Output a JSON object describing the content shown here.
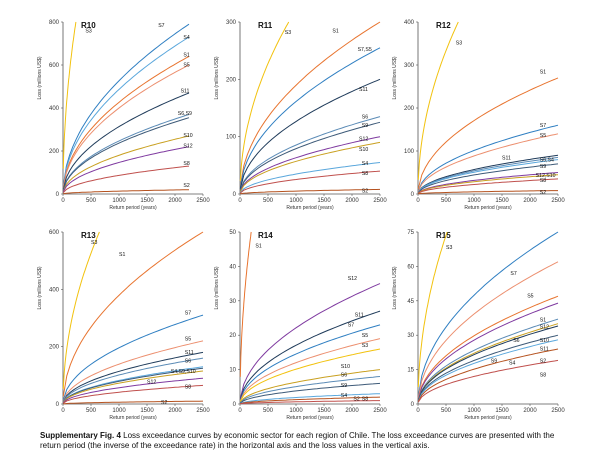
{
  "figure": {
    "caption_label": "Supplementary Fig. 4",
    "caption_text": " Loss exceedance curves by economic sector for each region of Chile. The loss exceedance curves are presented with the return period (the inverse of the exceedance rate) in the horizontal axis and the loss values in the vertical axis."
  },
  "colors": {
    "S1": "#e8742f",
    "S2": "#b5521f",
    "S3": "#f2c20e",
    "S4": "#5aa7dc",
    "S5": "#ec8f6f",
    "S6": "#5b8bb6",
    "S7": "#2f7fc2",
    "S8": "#c0504d",
    "S9": "#3d5a78",
    "S10": "#c9a020",
    "S11": "#1f3b5a",
    "S12": "#7f3aa0"
  },
  "chart_data": [
    {
      "type": "line",
      "title": "R10",
      "ylabel": "Loss (millions US$)",
      "xlabel": "Return period (years)",
      "xlim": [
        0,
        2500
      ],
      "ylim": [
        0,
        800
      ],
      "yticks": [
        0,
        200,
        400,
        600,
        800
      ],
      "xticks": [
        0,
        500,
        1000,
        1500,
        2000,
        2500
      ],
      "series": [
        {
          "name": "S3",
          "end": [
            230,
            800
          ]
        },
        {
          "name": "S7",
          "end": [
            2250,
            790
          ]
        },
        {
          "name": "S4",
          "end": [
            2250,
            730
          ]
        },
        {
          "name": "S1",
          "end": [
            2250,
            640
          ]
        },
        {
          "name": "S5",
          "end": [
            2250,
            600
          ]
        },
        {
          "name": "S11",
          "end": [
            2250,
            470
          ]
        },
        {
          "name": "S6",
          "end": [
            2250,
            370
          ]
        },
        {
          "name": "S9",
          "end": [
            2250,
            355
          ]
        },
        {
          "name": "S10",
          "end": [
            2250,
            270
          ]
        },
        {
          "name": "S12",
          "end": [
            2250,
            220
          ]
        },
        {
          "name": "S8",
          "end": [
            2250,
            130
          ]
        },
        {
          "name": "S2",
          "end": [
            2250,
            20
          ]
        }
      ],
      "labels": [
        {
          "t": "S3",
          "x": 0.16,
          "y": 0.94
        },
        {
          "t": "S7",
          "x": 0.68,
          "y": 0.97
        },
        {
          "t": "S4",
          "x": 0.86,
          "y": 0.9
        },
        {
          "t": "S1",
          "x": 0.86,
          "y": 0.8
        },
        {
          "t": "S5",
          "x": 0.86,
          "y": 0.74
        },
        {
          "t": "S11",
          "x": 0.84,
          "y": 0.59
        },
        {
          "t": "S6,S9",
          "x": 0.82,
          "y": 0.46
        },
        {
          "t": "S10",
          "x": 0.86,
          "y": 0.33
        },
        {
          "t": "S12",
          "x": 0.86,
          "y": 0.27
        },
        {
          "t": "S8",
          "x": 0.86,
          "y": 0.17
        },
        {
          "t": "S2",
          "x": 0.86,
          "y": 0.04
        }
      ]
    },
    {
      "type": "line",
      "title": "R11",
      "ylabel": "Loss (millions US$)",
      "xlabel": "Return period (years)",
      "xlim": [
        0,
        2500
      ],
      "ylim": [
        0,
        300
      ],
      "yticks": [
        0,
        100,
        200,
        300
      ],
      "xticks": [
        0,
        500,
        1000,
        1500,
        2000,
        2500
      ],
      "series": [
        {
          "name": "S3",
          "end": [
            870,
            300
          ]
        },
        {
          "name": "S1",
          "end": [
            2500,
            300
          ]
        },
        {
          "name": "S7,S5",
          "end": [
            2500,
            255
          ]
        },
        {
          "name": "S11",
          "end": [
            2500,
            200
          ]
        },
        {
          "name": "S6",
          "end": [
            2500,
            135
          ]
        },
        {
          "name": "S9",
          "end": [
            2500,
            125
          ]
        },
        {
          "name": "S12",
          "end": [
            2500,
            100
          ]
        },
        {
          "name": "S10",
          "end": [
            2500,
            90
          ]
        },
        {
          "name": "S4",
          "end": [
            2500,
            55
          ]
        },
        {
          "name": "S8",
          "end": [
            2500,
            40
          ]
        },
        {
          "name": "S2",
          "end": [
            2500,
            8
          ]
        }
      ],
      "labels": [
        {
          "t": "S3",
          "x": 0.32,
          "y": 0.93
        },
        {
          "t": "S1",
          "x": 0.66,
          "y": 0.94
        },
        {
          "t": "S7,S5",
          "x": 0.84,
          "y": 0.83
        },
        {
          "t": "S11",
          "x": 0.85,
          "y": 0.6
        },
        {
          "t": "S6",
          "x": 0.87,
          "y": 0.44
        },
        {
          "t": "S9",
          "x": 0.87,
          "y": 0.39
        },
        {
          "t": "S12",
          "x": 0.85,
          "y": 0.31
        },
        {
          "t": "S10",
          "x": 0.85,
          "y": 0.25
        },
        {
          "t": "S4",
          "x": 0.87,
          "y": 0.17
        },
        {
          "t": "S8",
          "x": 0.87,
          "y": 0.11
        },
        {
          "t": "S2",
          "x": 0.87,
          "y": 0.01
        }
      ]
    },
    {
      "type": "line",
      "title": "R12",
      "ylabel": "Loss (millions US$)",
      "xlabel": "Return period (years)",
      "xlim": [
        0,
        2500
      ],
      "ylim": [
        0,
        400
      ],
      "yticks": [
        0,
        100,
        200,
        300,
        400
      ],
      "xticks": [
        0,
        500,
        1000,
        1500,
        2000,
        2500
      ],
      "series": [
        {
          "name": "S3",
          "end": [
            720,
            400
          ]
        },
        {
          "name": "S1",
          "end": [
            2500,
            270
          ]
        },
        {
          "name": "S7",
          "end": [
            2500,
            160
          ]
        },
        {
          "name": "S5",
          "end": [
            2500,
            140
          ]
        },
        {
          "name": "S11",
          "end": [
            2500,
            90
          ]
        },
        {
          "name": "S6",
          "end": [
            2500,
            85
          ]
        },
        {
          "name": "S4",
          "end": [
            2500,
            80
          ]
        },
        {
          "name": "S9",
          "end": [
            2500,
            70
          ]
        },
        {
          "name": "S12",
          "end": [
            2500,
            50
          ]
        },
        {
          "name": "S10",
          "end": [
            2500,
            45
          ]
        },
        {
          "name": "S8",
          "end": [
            2500,
            35
          ]
        },
        {
          "name": "S2",
          "end": [
            2500,
            8
          ]
        }
      ],
      "labels": [
        {
          "t": "S3",
          "x": 0.27,
          "y": 0.87
        },
        {
          "t": "S1",
          "x": 0.87,
          "y": 0.7
        },
        {
          "t": "S7",
          "x": 0.87,
          "y": 0.39
        },
        {
          "t": "S5",
          "x": 0.87,
          "y": 0.33
        },
        {
          "t": "S11",
          "x": 0.6,
          "y": 0.2
        },
        {
          "t": "S6,S4",
          "x": 0.87,
          "y": 0.19
        },
        {
          "t": "S9",
          "x": 0.87,
          "y": 0.15
        },
        {
          "t": "S12,S10",
          "x": 0.84,
          "y": 0.1
        },
        {
          "t": "S8",
          "x": 0.87,
          "y": 0.07
        },
        {
          "t": "S2",
          "x": 0.87,
          "y": 0.0
        }
      ]
    },
    {
      "type": "line",
      "title": "R13",
      "ylabel": "Loss (millions US$)",
      "xlabel": "Return period (years)",
      "xlim": [
        0,
        2500
      ],
      "ylim": [
        0,
        600
      ],
      "yticks": [
        0,
        200,
        400,
        600
      ],
      "xticks": [
        0,
        500,
        1000,
        1500,
        2000,
        2500
      ],
      "series": [
        {
          "name": "S3",
          "end": [
            650,
            600
          ]
        },
        {
          "name": "S1",
          "end": [
            2500,
            600
          ]
        },
        {
          "name": "S7",
          "end": [
            2500,
            310
          ]
        },
        {
          "name": "S5",
          "end": [
            2500,
            220
          ]
        },
        {
          "name": "S11",
          "end": [
            2500,
            180
          ]
        },
        {
          "name": "S6",
          "end": [
            2500,
            160
          ]
        },
        {
          "name": "S4",
          "end": [
            2500,
            130
          ]
        },
        {
          "name": "S9",
          "end": [
            2500,
            125
          ]
        },
        {
          "name": "S10",
          "end": [
            2500,
            115
          ]
        },
        {
          "name": "S12",
          "end": [
            2500,
            90
          ]
        },
        {
          "name": "S8",
          "end": [
            2500,
            65
          ]
        },
        {
          "name": "S2",
          "end": [
            2500,
            10
          ]
        }
      ],
      "labels": [
        {
          "t": "S3",
          "x": 0.2,
          "y": 0.93
        },
        {
          "t": "S1",
          "x": 0.4,
          "y": 0.86
        },
        {
          "t": "S7",
          "x": 0.87,
          "y": 0.52
        },
        {
          "t": "S5",
          "x": 0.87,
          "y": 0.37
        },
        {
          "t": "S11",
          "x": 0.87,
          "y": 0.29
        },
        {
          "t": "S6",
          "x": 0.87,
          "y": 0.24
        },
        {
          "t": "S4,S9,S10",
          "x": 0.77,
          "y": 0.18
        },
        {
          "t": "S12",
          "x": 0.6,
          "y": 0.12
        },
        {
          "t": "S8",
          "x": 0.87,
          "y": 0.09
        },
        {
          "t": "S2",
          "x": 0.7,
          "y": 0.0
        }
      ]
    },
    {
      "type": "line",
      "title": "R14",
      "ylabel": "Loss (millions US$)",
      "xlabel": "Return period (years)",
      "xlim": [
        0,
        2500
      ],
      "ylim": [
        0,
        50
      ],
      "yticks": [
        0,
        10,
        20,
        30,
        40,
        50
      ],
      "xticks": [
        0,
        500,
        1000,
        1500,
        2000,
        2500
      ],
      "series": [
        {
          "name": "S1",
          "end": [
            200,
            50
          ]
        },
        {
          "name": "S12",
          "end": [
            2500,
            35
          ]
        },
        {
          "name": "S11",
          "end": [
            2500,
            27
          ]
        },
        {
          "name": "S7",
          "end": [
            2500,
            23
          ]
        },
        {
          "name": "S5",
          "end": [
            2500,
            19
          ]
        },
        {
          "name": "S3",
          "end": [
            2500,
            16
          ]
        },
        {
          "name": "S10",
          "end": [
            2500,
            10
          ]
        },
        {
          "name": "S6",
          "end": [
            2500,
            8
          ]
        },
        {
          "name": "S9",
          "end": [
            2500,
            6
          ]
        },
        {
          "name": "S4",
          "end": [
            2500,
            3
          ]
        },
        {
          "name": "S2",
          "end": [
            2500,
            2
          ]
        },
        {
          "name": "S8",
          "end": [
            2500,
            1
          ]
        }
      ],
      "labels": [
        {
          "t": "S1",
          "x": 0.11,
          "y": 0.91
        },
        {
          "t": "S12",
          "x": 0.77,
          "y": 0.72
        },
        {
          "t": "S11",
          "x": 0.82,
          "y": 0.51
        },
        {
          "t": "S7",
          "x": 0.77,
          "y": 0.45
        },
        {
          "t": "S5",
          "x": 0.87,
          "y": 0.39
        },
        {
          "t": "S3",
          "x": 0.87,
          "y": 0.33
        },
        {
          "t": "S10",
          "x": 0.72,
          "y": 0.21
        },
        {
          "t": "S6",
          "x": 0.72,
          "y": 0.16
        },
        {
          "t": "S9",
          "x": 0.72,
          "y": 0.1
        },
        {
          "t": "S4",
          "x": 0.72,
          "y": 0.04
        },
        {
          "t": "S2",
          "x": 0.81,
          "y": 0.02
        },
        {
          "t": "S8",
          "x": 0.87,
          "y": 0.02
        }
      ]
    },
    {
      "type": "line",
      "title": "R15",
      "ylabel": "Loss (millions US$)",
      "xlabel": "Return period (years)",
      "xlim": [
        0,
        2500
      ],
      "ylim": [
        0,
        75
      ],
      "yticks": [
        0,
        15,
        30,
        45,
        60,
        75
      ],
      "xticks": [
        0,
        500,
        1000,
        1500,
        2000,
        2500
      ],
      "series": [
        {
          "name": "S3",
          "end": [
            520,
            75
          ]
        },
        {
          "name": "S7",
          "end": [
            2500,
            75
          ]
        },
        {
          "name": "S5",
          "end": [
            2500,
            62
          ]
        },
        {
          "name": "S1",
          "end": [
            2500,
            47
          ]
        },
        {
          "name": "S12",
          "end": [
            2500,
            44
          ]
        },
        {
          "name": "S6",
          "end": [
            2500,
            37
          ]
        },
        {
          "name": "S10",
          "end": [
            2500,
            35
          ]
        },
        {
          "name": "S11",
          "end": [
            2500,
            34
          ]
        },
        {
          "name": "S9",
          "end": [
            2500,
            30
          ]
        },
        {
          "name": "S4",
          "end": [
            2500,
            28
          ]
        },
        {
          "name": "S2",
          "end": [
            2500,
            24
          ]
        },
        {
          "name": "S8",
          "end": [
            2500,
            19
          ]
        }
      ],
      "labels": [
        {
          "t": "S3",
          "x": 0.2,
          "y": 0.9
        },
        {
          "t": "S7",
          "x": 0.66,
          "y": 0.75
        },
        {
          "t": "S5",
          "x": 0.78,
          "y": 0.62
        },
        {
          "t": "S1",
          "x": 0.87,
          "y": 0.48
        },
        {
          "t": "S12",
          "x": 0.87,
          "y": 0.44
        },
        {
          "t": "S6",
          "x": 0.68,
          "y": 0.36
        },
        {
          "t": "S10",
          "x": 0.87,
          "y": 0.36
        },
        {
          "t": "S11",
          "x": 0.87,
          "y": 0.31
        },
        {
          "t": "S9",
          "x": 0.52,
          "y": 0.24
        },
        {
          "t": "S4",
          "x": 0.65,
          "y": 0.23
        },
        {
          "t": "S2",
          "x": 0.87,
          "y": 0.24
        },
        {
          "t": "S8",
          "x": 0.87,
          "y": 0.16
        }
      ]
    }
  ]
}
